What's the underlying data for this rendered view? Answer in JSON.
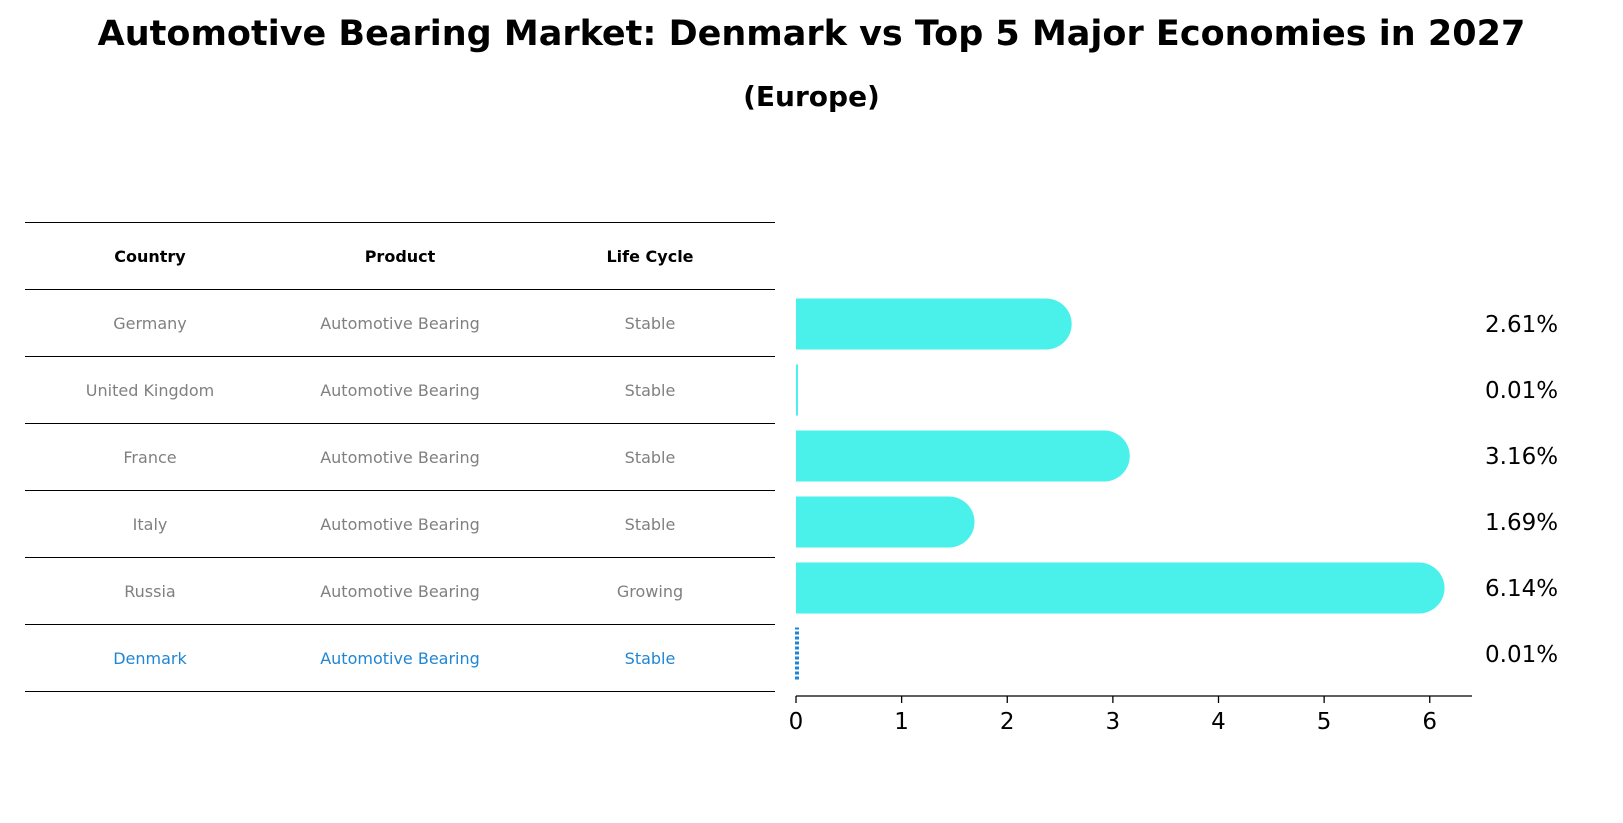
{
  "title": "Automotive Bearing Market: Denmark vs Top 5 Major Economies in 2027",
  "subtitle": "(Europe)",
  "table": {
    "headers": [
      "Country",
      "Product",
      "Life Cycle"
    ],
    "rows": [
      {
        "country": "Germany",
        "product": "Automotive Bearing",
        "life_cycle": "Stable"
      },
      {
        "country": "United Kingdom",
        "product": "Automotive Bearing",
        "life_cycle": "Stable"
      },
      {
        "country": "France",
        "product": "Automotive Bearing",
        "life_cycle": "Stable"
      },
      {
        "country": "Italy",
        "product": "Automotive Bearing",
        "life_cycle": "Stable"
      },
      {
        "country": "Russia",
        "product": "Automotive Bearing",
        "life_cycle": "Growing"
      },
      {
        "country": "Denmark",
        "product": "Automotive Bearing",
        "life_cycle": "Stable"
      }
    ],
    "highlight_color": "#1f86d6",
    "text_color": "#808080"
  },
  "chart_data": {
    "type": "bar",
    "orientation": "horizontal",
    "categories": [
      "Germany",
      "United Kingdom",
      "France",
      "Italy",
      "Russia",
      "Denmark"
    ],
    "values": [
      2.61,
      0.01,
      3.16,
      1.69,
      6.14,
      0.01
    ],
    "value_labels": [
      "2.61%",
      "0.01%",
      "3.16%",
      "1.69%",
      "6.14%",
      "0.01%"
    ],
    "xlim": [
      0,
      6.4
    ],
    "xticks": [
      0,
      1,
      2,
      3,
      4,
      5,
      6
    ],
    "bar_color": "#4af0ea",
    "highlight_category": "Denmark",
    "highlight_color": "#1f86d6",
    "grid": false
  }
}
